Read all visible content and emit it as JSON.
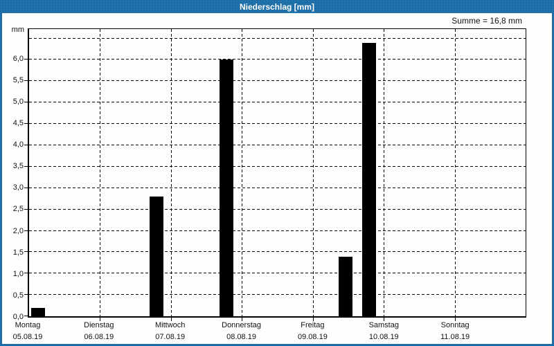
{
  "window": {
    "title": "Niederschlag [mm]",
    "summary_label": "Summe = 16,8 mm"
  },
  "colors": {
    "titlebar_bg": "#1C6EA8",
    "title_text": "#FFFFFF",
    "window_border": "#1C6EA8",
    "content_bg": "#FDFFFC",
    "bar_fill": "#000000",
    "axis_text": "#111111"
  },
  "chart_data": {
    "type": "bar",
    "title": "Niederschlag [mm]",
    "ylabel": "mm",
    "sum_text": "Summe = 16,8 mm",
    "sum_mm": 16.8,
    "categories": [
      "Montag",
      "Dienstag",
      "Mittwoch",
      "Donnerstag",
      "Freitag",
      "Samstag",
      "Sonntag"
    ],
    "dates": [
      "05.08.19",
      "06.08.19",
      "07.08.19",
      "08.08.19",
      "09.08.19",
      "10.08.19",
      "11.08.19"
    ],
    "values_mm": [
      0.2,
      0,
      2.8,
      6.0,
      1.4,
      6.4,
      0
    ],
    "ylim": [
      0,
      6.72
    ],
    "ytick_step": 0.5,
    "grid": true,
    "yticks": [
      {
        "v": 0.0,
        "label": "0,0"
      },
      {
        "v": 0.5,
        "label": "0,5"
      },
      {
        "v": 1.0,
        "label": "1,0"
      },
      {
        "v": 1.5,
        "label": "1,5"
      },
      {
        "v": 2.0,
        "label": "2,0"
      },
      {
        "v": 2.5,
        "label": "2,5"
      },
      {
        "v": 3.0,
        "label": "3,0"
      },
      {
        "v": 3.5,
        "label": "3,5"
      },
      {
        "v": 4.0,
        "label": "4,0"
      },
      {
        "v": 4.5,
        "label": "4,5"
      },
      {
        "v": 5.0,
        "label": "5,0"
      },
      {
        "v": 5.5,
        "label": "5,5"
      },
      {
        "v": 6.0,
        "label": "6,0"
      },
      {
        "v": 6.5,
        "label": ""
      }
    ],
    "bars": [
      {
        "day": "Montag",
        "date": "05.08.19",
        "value_mm": 0.2,
        "x_frac": 0.0042,
        "w_frac": 0.0278
      },
      {
        "day": "Mittwoch",
        "date": "07.08.19",
        "value_mm": 2.8,
        "x_frac": 0.2431,
        "w_frac": 0.0278
      },
      {
        "day": "Donnerstag",
        "date": "08.08.19",
        "value_mm": 6.0,
        "x_frac": 0.3833,
        "w_frac": 0.0278
      },
      {
        "day": "Freitag",
        "date": "09.08.19",
        "value_mm": 1.4,
        "x_frac": 0.6236,
        "w_frac": 0.0278
      },
      {
        "day": "Samstag",
        "date": "10.08.19",
        "value_mm": 6.4,
        "x_frac": 0.6708,
        "w_frac": 0.0278
      }
    ]
  }
}
